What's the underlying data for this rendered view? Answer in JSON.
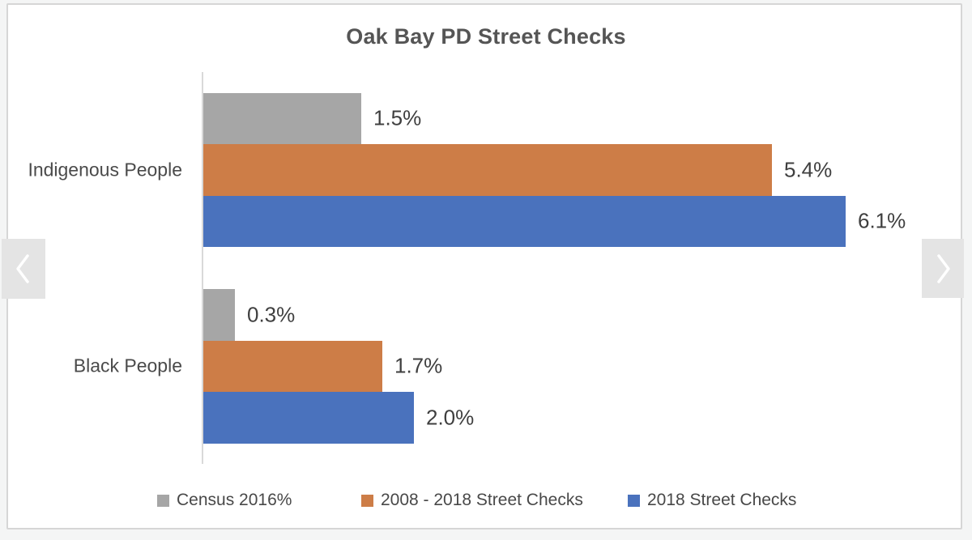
{
  "page": {
    "background_color": "#f4f5f5",
    "card_background": "#ffffff",
    "card_border_color": "#d6d6d6"
  },
  "carousel": {
    "prev_icon": "chevron-left",
    "next_icon": "chevron-right",
    "arrow_background": "#e4e4e4",
    "arrow_glyph_color": "#ffffff"
  },
  "chart_data": {
    "type": "bar",
    "orientation": "horizontal",
    "title": "Oak Bay PD Street Checks",
    "categories": [
      "Indigenous People",
      "Black People"
    ],
    "series": [
      {
        "name": "Census 2016%",
        "color": "#a6a6a6",
        "values": [
          1.5,
          0.3
        ],
        "labels": [
          "1.5%",
          "0.3%"
        ]
      },
      {
        "name": "2008 - 2018 Street Checks",
        "color": "#cd7d47",
        "values": [
          5.4,
          1.7
        ],
        "labels": [
          "5.4%",
          "1.7%"
        ]
      },
      {
        "name": "2018 Street Checks",
        "color": "#4a72bd",
        "values": [
          6.1,
          2.0
        ],
        "labels": [
          "6.1%",
          "2.0%"
        ]
      }
    ],
    "xlim": [
      0,
      6.8
    ],
    "grid": false,
    "legend_position": "bottom",
    "axis_color": "#d9d9d9"
  }
}
